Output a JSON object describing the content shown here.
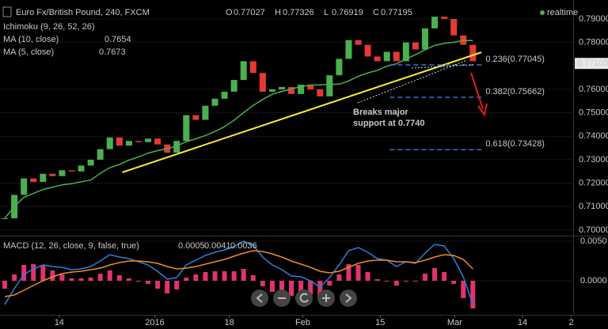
{
  "chart_data": [
    {
      "type": "candles",
      "title": "Euro Fx/British Pound, 240, FXCM",
      "ohlc_labels": [
        "O",
        "H",
        "L",
        "C"
      ],
      "ohlc_values": [
        0.77027,
        0.77326,
        0.76919,
        0.77195
      ],
      "status": "realtime",
      "indicators": [
        {
          "name": "Ichimoku (9, 26, 52, 26)"
        },
        {
          "name": "MA (10, close)",
          "value": 0.7654,
          "color": "#4caf50"
        },
        {
          "name": "MA (5, close)",
          "value": 0.7673,
          "color": "#e53935"
        }
      ],
      "values": [
        0.705,
        0.715,
        0.722,
        0.7205,
        0.724,
        0.723,
        0.7255,
        0.725,
        0.7275,
        0.73,
        0.7345,
        0.7395,
        0.736,
        0.738,
        0.7375,
        0.739,
        0.7365,
        0.733,
        0.738,
        0.749,
        0.747,
        0.753,
        0.756,
        0.759,
        0.764,
        0.772,
        0.767,
        0.759,
        0.76,
        0.761,
        0.758,
        0.762,
        0.76,
        0.757,
        0.766,
        0.773,
        0.781,
        0.779,
        0.774,
        0.772,
        0.776,
        0.772,
        0.78,
        0.777,
        0.786,
        0.791,
        0.79,
        0.783,
        0.779,
        0.772
      ],
      "ma_values": [
        0.705,
        0.71,
        0.714,
        0.7156,
        0.7173,
        0.7183,
        0.7193,
        0.7198,
        0.7206,
        0.7213,
        0.7242,
        0.7266,
        0.728,
        0.7298,
        0.7312,
        0.7328,
        0.7339,
        0.7347,
        0.7358,
        0.7377,
        0.7389,
        0.7403,
        0.742,
        0.7441,
        0.7468,
        0.7501,
        0.7531,
        0.7557,
        0.7579,
        0.7591,
        0.7602,
        0.7611,
        0.7618,
        0.7619,
        0.7621,
        0.7622,
        0.7636,
        0.7656,
        0.767,
        0.7681,
        0.7699,
        0.7709,
        0.7729,
        0.7748,
        0.7769,
        0.7787,
        0.7796,
        0.7801,
        0.7808,
        0.7808
      ],
      "up_color": "#4caf50",
      "down_color": "#e53935",
      "xlim": [
        0,
        60
      ],
      "xticks": [
        {
          "value": 6.2,
          "label": "14"
        },
        {
          "value": 16.2,
          "label": "2016"
        },
        {
          "value": 24,
          "label": "18"
        },
        {
          "value": 31.7,
          "label": "Feb"
        },
        {
          "value": 39.8,
          "label": "15"
        },
        {
          "value": 47.6,
          "label": "Mar"
        },
        {
          "value": 54.7,
          "label": "14"
        },
        {
          "value": 59.8,
          "label": "2"
        }
      ],
      "ylim": [
        0.6976,
        0.7981
      ],
      "yticks": [
        {
          "value": 0.7,
          "label": "0.70000"
        },
        {
          "value": 0.71,
          "label": "0.71000"
        },
        {
          "value": 0.72,
          "label": "0.72000"
        },
        {
          "value": 0.73,
          "label": "0.73000"
        },
        {
          "value": 0.74,
          "label": "0.74000"
        },
        {
          "value": 0.75,
          "label": "0.75000"
        },
        {
          "value": 0.76,
          "label": "0.76000"
        },
        {
          "value": 0.78,
          "label": "0.78000"
        },
        {
          "value": 0.79,
          "label": "0.79000"
        }
      ],
      "last_price": 0.77105,
      "trendline": {
        "x": [
          12.8,
          50.4
        ],
        "y": [
          0.7246,
          0.7758
        ],
        "color": "#ffeb3b"
      },
      "level_x": [
        40.8,
        50.5
      ],
      "levels": [
        {
          "value": 0.77045,
          "label": "0.236(0.77045)"
        },
        {
          "value": 0.75662,
          "label": "0.382(0.75662)"
        },
        {
          "value": 0.73428,
          "label": "0.618(0.73428)"
        }
      ],
      "level_color": "#3d6fd8",
      "annotation": [
        "Breaks major",
        "support at 0.7740"
      ]
    },
    {
      "type": "macd",
      "title": "MACD (12, 26, close, 9, false, true)",
      "ylim": [
        -0.0043,
        0.0057
      ],
      "yticks": [
        {
          "value": 0.005,
          "label": "0.0050"
        },
        {
          "value": 0,
          "label": "0.0000"
        }
      ],
      "series": [
        {
          "color": "#e0336f",
          "legend_value": 0.0005,
          "values": [
            -0.001,
            0.0008,
            0.002,
            0.0021,
            0.002,
            0.0013,
            0.0008,
            0.0003,
            0.0003,
            0.0004,
            0.0009,
            0.0013,
            0.0007,
            0.0003,
            -0.0001,
            -0.0004,
            -0.001,
            -0.0016,
            -0.0011,
            0.0004,
            0.0008,
            0.0011,
            0.0012,
            0.0012,
            0.0012,
            0.0015,
            0.0007,
            -0.0007,
            -0.0014,
            -0.0016,
            -0.0019,
            -0.0016,
            -0.0017,
            -0.002,
            -0.0006,
            0.0008,
            0.0021,
            0.002,
            0.0011,
            0.0002,
            0.0,
            -0.0006,
            0.0,
            -0.0001,
            0.0009,
            0.0016,
            0.0011,
            -0.0004,
            -0.0022,
            -0.0035
          ]
        },
        {
          "color": "#2f7fe0",
          "legend_value": 0.0041,
          "values": [
            -0.003,
            -0.001,
            0.0008,
            0.0015,
            0.002,
            0.0018,
            0.0017,
            0.0014,
            0.0015,
            0.0018,
            0.0025,
            0.0033,
            0.003,
            0.0028,
            0.0024,
            0.002,
            0.0012,
            0.0002,
            0.0004,
            0.002,
            0.0026,
            0.0032,
            0.0036,
            0.0039,
            0.0043,
            0.005,
            0.0045,
            0.003,
            0.002,
            0.0014,
            0.0006,
            0.0005,
            0.0,
            -0.0008,
            0.0004,
            0.002,
            0.0038,
            0.0042,
            0.0036,
            0.0028,
            0.0026,
            0.0018,
            0.0024,
            0.0022,
            0.0035,
            0.0046,
            0.0044,
            0.0028,
            0.0005,
            -0.003
          ]
        },
        {
          "color": "#f08a24",
          "legend_value": 0.0036,
          "values": [
            -0.002,
            -0.0018,
            -0.0012,
            -0.0006,
            0.0,
            0.0005,
            0.0009,
            0.0011,
            0.0012,
            0.0014,
            0.0016,
            0.002,
            0.0023,
            0.0025,
            0.0025,
            0.0024,
            0.0022,
            0.0018,
            0.0015,
            0.0016,
            0.0018,
            0.0021,
            0.0024,
            0.0027,
            0.0031,
            0.0035,
            0.0038,
            0.0037,
            0.0034,
            0.003,
            0.0025,
            0.0021,
            0.0017,
            0.0012,
            0.001,
            0.0012,
            0.0017,
            0.0022,
            0.0025,
            0.0026,
            0.0026,
            0.0024,
            0.0024,
            0.0023,
            0.0026,
            0.003,
            0.0033,
            0.0032,
            0.0027,
            0.0015
          ]
        }
      ]
    }
  ]
}
